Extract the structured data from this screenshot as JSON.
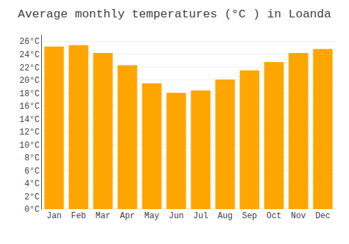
{
  "chart_data": {
    "type": "bar",
    "title": "Average monthly temperatures (°C ) in Loanda",
    "categories": [
      "Jan",
      "Feb",
      "Mar",
      "Apr",
      "May",
      "Jun",
      "Jul",
      "Aug",
      "Sep",
      "Oct",
      "Nov",
      "Dec"
    ],
    "values": [
      25.2,
      25.4,
      24.2,
      22.3,
      19.5,
      18.0,
      18.4,
      20.1,
      21.5,
      22.8,
      24.2,
      24.8
    ],
    "color": "#FFA500",
    "ylim": [
      0,
      27
    ],
    "yticks": [
      {
        "value": 0,
        "label": "0°C"
      },
      {
        "value": 2,
        "label": "2°C"
      },
      {
        "value": 4,
        "label": "4°C"
      },
      {
        "value": 6,
        "label": "6°C"
      },
      {
        "value": 8,
        "label": "8°C"
      },
      {
        "value": 10,
        "label": "10°C"
      },
      {
        "value": 12,
        "label": "12°C"
      },
      {
        "value": 14,
        "label": "14°C"
      },
      {
        "value": 16,
        "label": "16°C"
      },
      {
        "value": 18,
        "label": "18°C"
      },
      {
        "value": 20,
        "label": "20°C"
      },
      {
        "value": 22,
        "label": "22°C"
      },
      {
        "value": 24,
        "label": "24°C"
      },
      {
        "value": 26,
        "label": "26°C"
      }
    ],
    "grid": true
  }
}
